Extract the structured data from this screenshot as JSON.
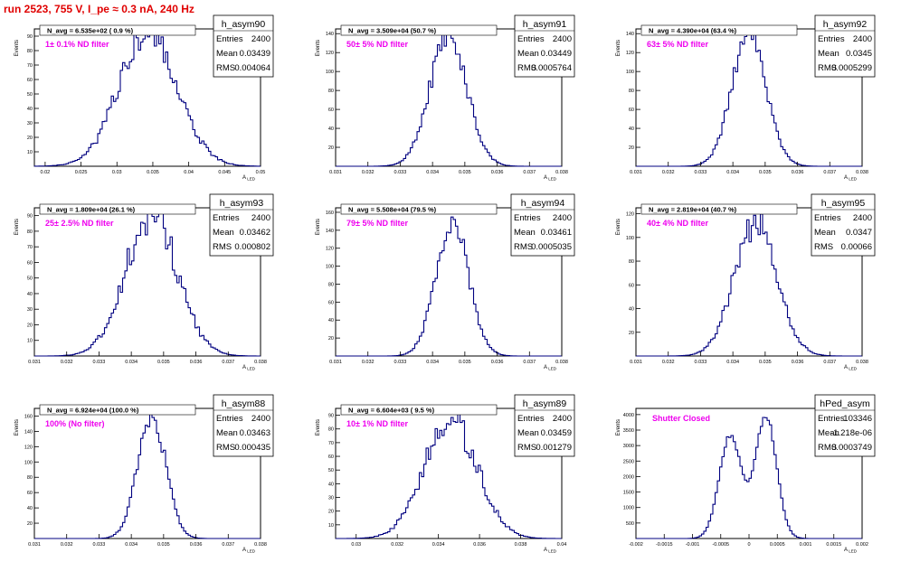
{
  "page_title": "run 2523,   755 V, I_pe ≈ 0.3 nA, 240 Hz",
  "colors": {
    "title": "#e00000",
    "annotation": "#ee00ee",
    "histogram": "#000080",
    "axes": "#000000"
  },
  "labels": {
    "entries": "Entries",
    "mean": "Mean",
    "rms": "RMS",
    "y_axis": "Events",
    "x_axis": "A",
    "x_axis_sub": "LED"
  },
  "chart_data": [
    {
      "type": "histogram",
      "name": "h_asym90",
      "navg": "N_avg = 6.535e+02 ( 0.9 %)",
      "annotation": "1± 0.1% ND filter",
      "entries": "2400",
      "mean": "0.03439",
      "rms": "0.004064",
      "xlim": [
        0.0185,
        0.05
      ],
      "ylim": [
        0,
        95
      ],
      "xticks": [
        0.02,
        0.025,
        0.03,
        0.035,
        0.04,
        0.045,
        0.05
      ],
      "xtick_labels": [
        "0.02",
        "0.025",
        "0.03",
        "0.035",
        "0.04",
        "0.045",
        "0.05"
      ],
      "yticks": [
        10,
        20,
        30,
        40,
        50,
        60,
        70,
        80,
        90
      ],
      "ytick_labels": [
        "10",
        "20",
        "30",
        "40",
        "50",
        "60",
        "70",
        "80",
        "90"
      ],
      "peak": 90,
      "mu": 0.03439,
      "sigma": 0.004064,
      "noise": 0.16,
      "seed": 11
    },
    {
      "type": "histogram",
      "name": "h_asym91",
      "navg": "N_avg = 3.509e+04 (50.7 %)",
      "annotation": "50± 5% ND filter",
      "entries": "2400",
      "mean": "0.03449",
      "rms": "0.0005764",
      "xlim": [
        0.031,
        0.038
      ],
      "ylim": [
        0,
        145
      ],
      "xticks": [
        0.031,
        0.032,
        0.033,
        0.034,
        0.035,
        0.036,
        0.037,
        0.038
      ],
      "xtick_labels": [
        "0.031",
        "0.032",
        "0.033",
        "0.034",
        "0.035",
        "0.036",
        "0.037",
        "0.038"
      ],
      "yticks": [
        20,
        40,
        60,
        80,
        100,
        120,
        140
      ],
      "ytick_labels": [
        "20",
        "40",
        "60",
        "80",
        "100",
        "120",
        "140"
      ],
      "peak": 138,
      "mu": 0.03449,
      "sigma": 0.0005764,
      "noise": 0.1,
      "seed": 23
    },
    {
      "type": "histogram",
      "name": "h_asym92",
      "navg": "N_avg = 4.390e+04 (63.4 %)",
      "annotation": "63± 5% ND filter",
      "entries": "2400",
      "mean": "0.0345",
      "rms": "0.0005299",
      "xlim": [
        0.031,
        0.038
      ],
      "ylim": [
        0,
        145
      ],
      "xticks": [
        0.031,
        0.032,
        0.033,
        0.034,
        0.035,
        0.036,
        0.037,
        0.038
      ],
      "xtick_labels": [
        "0.031",
        "0.032",
        "0.033",
        "0.034",
        "0.035",
        "0.036",
        "0.037",
        "0.038"
      ],
      "yticks": [
        20,
        40,
        60,
        80,
        100,
        120,
        140
      ],
      "ytick_labels": [
        "20",
        "40",
        "60",
        "80",
        "100",
        "120",
        "140"
      ],
      "peak": 140,
      "mu": 0.0345,
      "sigma": 0.0005299,
      "noise": 0.1,
      "seed": 37
    },
    {
      "type": "histogram",
      "name": "h_asym93",
      "navg": "N_avg = 1.809e+04 (26.1 %)",
      "annotation": "25± 2.5% ND filter",
      "entries": "2400",
      "mean": "0.03462",
      "rms": "0.000802",
      "xlim": [
        0.031,
        0.038
      ],
      "ylim": [
        0,
        95
      ],
      "xticks": [
        0.031,
        0.032,
        0.033,
        0.034,
        0.035,
        0.036,
        0.037,
        0.038
      ],
      "xtick_labels": [
        "0.031",
        "0.032",
        "0.033",
        "0.034",
        "0.035",
        "0.036",
        "0.037",
        "0.038"
      ],
      "yticks": [
        10,
        20,
        30,
        40,
        50,
        60,
        70,
        80,
        90
      ],
      "ytick_labels": [
        "10",
        "20",
        "30",
        "40",
        "50",
        "60",
        "70",
        "80",
        "90"
      ],
      "peak": 90,
      "mu": 0.03462,
      "sigma": 0.000802,
      "noise": 0.14,
      "seed": 41
    },
    {
      "type": "histogram",
      "name": "h_asym94",
      "navg": "N_avg = 5.508e+04 (79.5 %)",
      "annotation": "79± 5% ND filter",
      "entries": "2400",
      "mean": "0.03461",
      "rms": "0.0005035",
      "xlim": [
        0.031,
        0.038
      ],
      "ylim": [
        0,
        165
      ],
      "xticks": [
        0.031,
        0.032,
        0.033,
        0.034,
        0.035,
        0.036,
        0.037,
        0.038
      ],
      "xtick_labels": [
        "0.031",
        "0.032",
        "0.033",
        "0.034",
        "0.035",
        "0.036",
        "0.037",
        "0.038"
      ],
      "yticks": [
        20,
        40,
        60,
        80,
        100,
        120,
        140,
        160
      ],
      "ytick_labels": [
        "20",
        "40",
        "60",
        "80",
        "100",
        "120",
        "140",
        "160"
      ],
      "peak": 152,
      "mu": 0.03461,
      "sigma": 0.0005035,
      "noise": 0.1,
      "seed": 53
    },
    {
      "type": "histogram",
      "name": "h_asym95",
      "navg": "N_avg = 2.819e+04 (40.7 %)",
      "annotation": "40± 4% ND filter",
      "entries": "2400",
      "mean": "0.0347",
      "rms": "0.00066",
      "xlim": [
        0.031,
        0.038
      ],
      "ylim": [
        0,
        125
      ],
      "xticks": [
        0.031,
        0.032,
        0.033,
        0.034,
        0.035,
        0.036,
        0.037,
        0.038
      ],
      "xtick_labels": [
        "0.031",
        "0.032",
        "0.033",
        "0.034",
        "0.035",
        "0.036",
        "0.037",
        "0.038"
      ],
      "yticks": [
        20,
        40,
        60,
        80,
        100,
        120
      ],
      "ytick_labels": [
        "20",
        "40",
        "60",
        "80",
        "100",
        "120"
      ],
      "peak": 112,
      "mu": 0.0347,
      "sigma": 0.00066,
      "noise": 0.12,
      "seed": 67
    },
    {
      "type": "histogram",
      "name": "h_asym88",
      "navg": "N_avg = 6.924e+04 (100.0 %)",
      "annotation": "100% (No filter)",
      "entries": "2400",
      "mean": "0.03463",
      "rms": "0.000435",
      "xlim": [
        0.031,
        0.038
      ],
      "ylim": [
        0,
        170
      ],
      "xticks": [
        0.031,
        0.032,
        0.033,
        0.034,
        0.035,
        0.036,
        0.037,
        0.038
      ],
      "xtick_labels": [
        "0.031",
        "0.032",
        "0.033",
        "0.034",
        "0.035",
        "0.036",
        "0.037",
        "0.038"
      ],
      "yticks": [
        20,
        40,
        60,
        80,
        100,
        120,
        140,
        160
      ],
      "ytick_labels": [
        "20",
        "40",
        "60",
        "80",
        "100",
        "120",
        "140",
        "160"
      ],
      "peak": 162,
      "mu": 0.03463,
      "sigma": 0.000435,
      "noise": 0.08,
      "seed": 71
    },
    {
      "type": "histogram",
      "name": "h_asym89",
      "navg": "N_avg = 6.604e+03 ( 9.5 %)",
      "annotation": "10± 1% ND filter",
      "entries": "2400",
      "mean": "0.03459",
      "rms": "0.001279",
      "xlim": [
        0.029,
        0.04
      ],
      "ylim": [
        0,
        95
      ],
      "xticks": [
        0.03,
        0.032,
        0.034,
        0.036,
        0.038,
        0.04
      ],
      "xtick_labels": [
        "0.03",
        "0.032",
        "0.034",
        "0.036",
        "0.038",
        "0.04"
      ],
      "yticks": [
        10,
        20,
        30,
        40,
        50,
        60,
        70,
        80,
        90
      ],
      "ytick_labels": [
        "10",
        "20",
        "30",
        "40",
        "50",
        "60",
        "70",
        "80",
        "90"
      ],
      "peak": 88,
      "mu": 0.03459,
      "sigma": 0.001279,
      "noise": 0.16,
      "seed": 83
    },
    {
      "type": "histogram",
      "name": "hPed_asym",
      "navg": "",
      "annotation": "Shutter Closed",
      "entries": "103346",
      "mean": "-1.218e-06",
      "rms": "0.0003749",
      "xlim": [
        -0.002,
        0.002
      ],
      "ylim": [
        0,
        4200
      ],
      "xticks": [
        -0.002,
        -0.0015,
        -0.001,
        -0.0005,
        0,
        0.0005,
        0.001,
        0.0015,
        0.002
      ],
      "xtick_labels": [
        "-0.002",
        "-0.0015",
        "-0.001",
        "-0.0005",
        "0",
        "0.0005",
        "0.001",
        "0.0015",
        "0.002"
      ],
      "yticks": [
        500,
        1000,
        1500,
        2000,
        2500,
        3000,
        3500,
        4000
      ],
      "ytick_labels": [
        "500",
        "1000",
        "1500",
        "2000",
        "2500",
        "3000",
        "3500",
        "4000"
      ],
      "peak": 3950,
      "mu": -1.22e-06,
      "sigma": 0.0003749,
      "noise": 0.02,
      "seed": 97,
      "bimodal": true
    }
  ]
}
